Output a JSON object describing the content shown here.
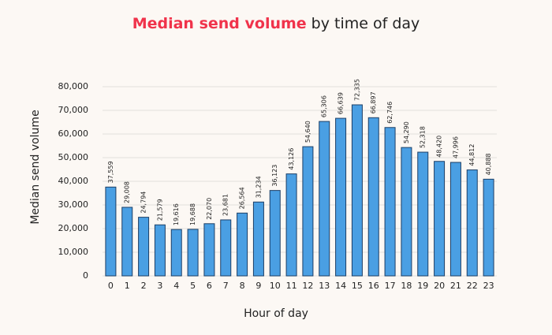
{
  "chart_data": {
    "type": "bar",
    "title_highlight": "Median send volume",
    "title_rest": "by time of day",
    "xlabel": "Hour of day",
    "ylabel": "Median send volume",
    "categories": [
      "0",
      "1",
      "2",
      "3",
      "4",
      "5",
      "6",
      "7",
      "8",
      "9",
      "10",
      "11",
      "12",
      "13",
      "14",
      "15",
      "16",
      "17",
      "18",
      "19",
      "20",
      "21",
      "22",
      "23"
    ],
    "values": [
      37559,
      29008,
      24794,
      21579,
      19616,
      19688,
      22070,
      23681,
      26564,
      31234,
      36123,
      43126,
      54640,
      65306,
      66639,
      72335,
      66897,
      62746,
      54290,
      52318,
      48420,
      47996,
      44812,
      40888
    ],
    "value_labels": [
      "37,559",
      "29,008",
      "24,794",
      "21,579",
      "19,616",
      "19,688",
      "22,070",
      "23,681",
      "26,564",
      "31,234",
      "36,123",
      "43,126",
      "54,640",
      "65,306",
      "66,639",
      "72,335",
      "66,897",
      "62,746",
      "54,290",
      "52,318",
      "48,420",
      "47,996",
      "44,812",
      "40,888"
    ],
    "color": "#4a9fe3",
    "edge_color": "#1d3f66",
    "title_color": "#f0334b",
    "ylim": [
      0,
      80000
    ],
    "yticks": [
      0,
      {
        "value": 10000,
        "label": "10,000"
      },
      {
        "value": 20000,
        "label": "20,000"
      },
      {
        "value": 30000,
        "label": "30,000"
      },
      {
        "value": 40000,
        "label": "40,000"
      },
      {
        "value": 50000,
        "label": "50,000"
      },
      {
        "value": 60000,
        "label": "60,000"
      },
      {
        "value": 70000,
        "label": "70,000"
      },
      {
        "value": 80000,
        "label": "80,000"
      }
    ],
    "grid": true
  }
}
